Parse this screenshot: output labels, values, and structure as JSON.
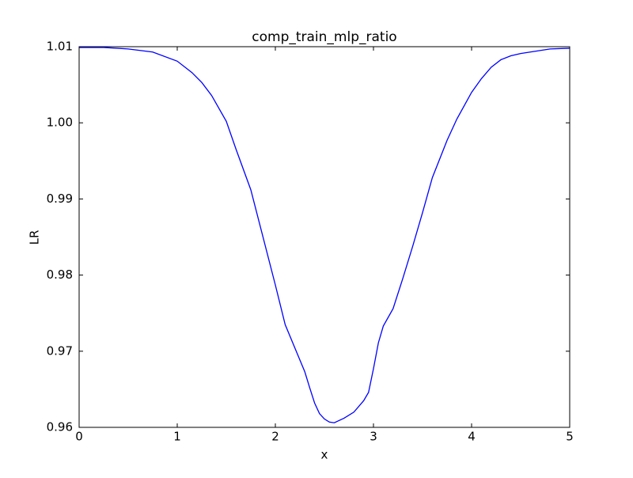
{
  "chart_data": {
    "type": "line",
    "title": "comp_train_mlp_ratio",
    "x_label": "x",
    "y_label": "LR",
    "x": [
      0,
      0.25,
      0.5,
      0.75,
      1,
      1.15,
      1.25,
      1.35,
      1.5,
      1.6,
      1.75,
      1.85,
      2,
      2.1,
      2.2,
      2.3,
      2.35,
      2.4,
      2.45,
      2.5,
      2.55,
      2.6,
      2.7,
      2.8,
      2.9,
      2.95,
      3,
      3.05,
      3.1,
      3.2,
      3.3,
      3.4,
      3.5,
      3.6,
      3.75,
      3.85,
      4,
      4.1,
      4.2,
      4.3,
      4.4,
      4.5,
      4.65,
      4.8,
      5
    ],
    "series": [
      {
        "name": "LR",
        "color": "#0000ff",
        "values": [
          1.0099,
          1.0099,
          1.0097,
          1.0093,
          1.0081,
          1.0066,
          1.0053,
          1.0036,
          1.0002,
          0.9965,
          0.9912,
          0.9862,
          0.9787,
          0.9735,
          0.9704,
          0.9673,
          0.9652,
          0.9632,
          0.9618,
          0.9611,
          0.9607,
          0.9606,
          0.9612,
          0.962,
          0.9635,
          0.9646,
          0.9677,
          0.9711,
          0.9733,
          0.9756,
          0.9796,
          0.9838,
          0.9882,
          0.9928,
          0.9977,
          1.0005,
          1.004,
          1.0058,
          1.0073,
          1.0083,
          1.0088,
          1.0091,
          1.0094,
          1.0097,
          1.0098
        ]
      }
    ],
    "xlim": [
      0,
      5
    ],
    "ylim": [
      0.96,
      1.01
    ],
    "xticks": [
      0,
      1,
      2,
      3,
      4,
      5
    ],
    "yticks": [
      0.96,
      0.97,
      0.98,
      0.99,
      {
        "value": 1,
        "label": "1.00"
      },
      1.01
    ],
    "grid": false
  }
}
